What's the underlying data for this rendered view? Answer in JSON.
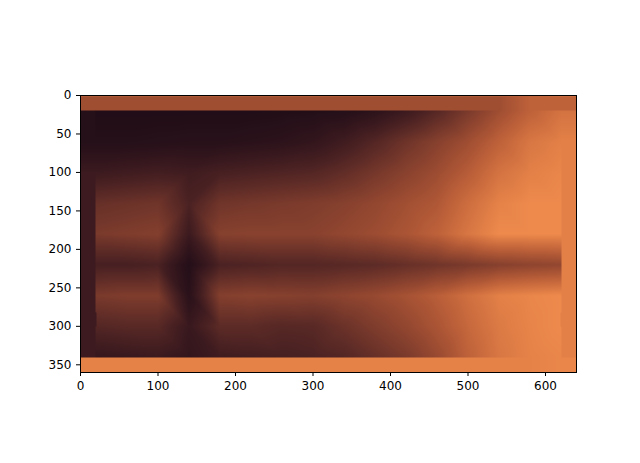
{
  "chart_data": {
    "type": "heatmap",
    "xlim": [
      0,
      640
    ],
    "ylim": [
      360,
      0
    ],
    "xticks": [
      0,
      100,
      200,
      300,
      400,
      500,
      600
    ],
    "yticks": [
      0,
      50,
      100,
      150,
      200,
      250,
      300,
      350
    ],
    "tick_labels": true,
    "zlim": [
      0,
      1
    ],
    "cells": [
      [
        0.02,
        0.02,
        0.02,
        0.02,
        0.02,
        0.02,
        0.03,
        0.04,
        0.06,
        0.12,
        0.22,
        0.35,
        0.5,
        0.65,
        0.78,
        0.88
      ],
      [
        0.06,
        0.06,
        0.07,
        0.08,
        0.08,
        0.1,
        0.12,
        0.16,
        0.24,
        0.34,
        0.45,
        0.55,
        0.65,
        0.78,
        0.9,
        0.95
      ],
      [
        0.22,
        0.24,
        0.26,
        0.24,
        0.28,
        0.3,
        0.32,
        0.34,
        0.4,
        0.48,
        0.56,
        0.64,
        0.75,
        0.88,
        0.95,
        0.98
      ],
      [
        0.42,
        0.44,
        0.46,
        0.3,
        0.46,
        0.48,
        0.5,
        0.52,
        0.55,
        0.6,
        0.66,
        0.72,
        0.85,
        0.96,
        1.0,
        1.0
      ],
      [
        0.5,
        0.52,
        0.54,
        0.22,
        0.55,
        0.56,
        0.56,
        0.56,
        0.6,
        0.64,
        0.7,
        0.78,
        0.9,
        1.0,
        1.0,
        1.0
      ],
      [
        0.28,
        0.28,
        0.3,
        0.05,
        0.3,
        0.32,
        0.34,
        0.34,
        0.36,
        0.38,
        0.42,
        0.46,
        0.5,
        0.55,
        0.58,
        0.6
      ],
      [
        0.5,
        0.52,
        0.52,
        0.1,
        0.54,
        0.56,
        0.55,
        0.54,
        0.58,
        0.62,
        0.68,
        0.76,
        0.86,
        0.95,
        0.98,
        1.0
      ],
      [
        0.34,
        0.36,
        0.36,
        0.2,
        0.38,
        0.38,
        0.35,
        0.36,
        0.44,
        0.52,
        0.6,
        0.7,
        0.82,
        0.92,
        0.97,
        1.0
      ],
      [
        0.18,
        0.2,
        0.22,
        0.16,
        0.24,
        0.26,
        0.28,
        0.3,
        0.34,
        0.42,
        0.5,
        0.62,
        0.78,
        0.9,
        0.96,
        0.98
      ]
    ]
  }
}
